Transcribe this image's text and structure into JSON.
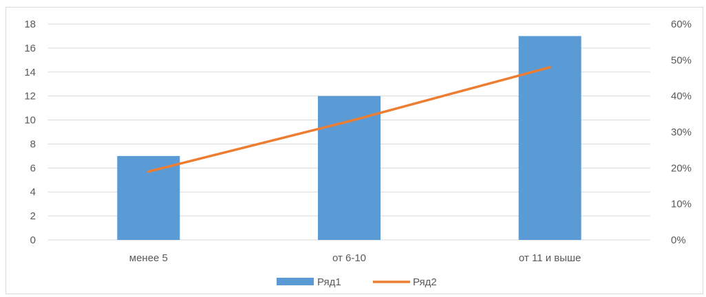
{
  "chart_data": {
    "type": "bar",
    "categories": [
      "менее 5",
      "от 6-10",
      "от 11 и выше"
    ],
    "series": [
      {
        "name": "Ряд1",
        "type": "bar",
        "axis": "left",
        "values": [
          7,
          12,
          17
        ],
        "color": "#5b9bd5"
      },
      {
        "name": "Ряд2",
        "type": "line",
        "axis": "right",
        "values": [
          0.19,
          0.33,
          0.48
        ],
        "color": "#ed7d31"
      }
    ],
    "y_left": {
      "min": 0,
      "max": 18,
      "step": 2,
      "ticks": [
        "0",
        "2",
        "4",
        "6",
        "8",
        "10",
        "12",
        "14",
        "16",
        "18"
      ]
    },
    "y_right": {
      "min": 0,
      "max": 0.6,
      "step": 0.1,
      "ticks": [
        "0%",
        "10%",
        "20%",
        "30%",
        "40%",
        "50%",
        "60%"
      ]
    },
    "grid": true,
    "gridline_color": "#d9d9d9",
    "legend": "bottom",
    "title": "",
    "xlabel": "",
    "ylabel": ""
  }
}
